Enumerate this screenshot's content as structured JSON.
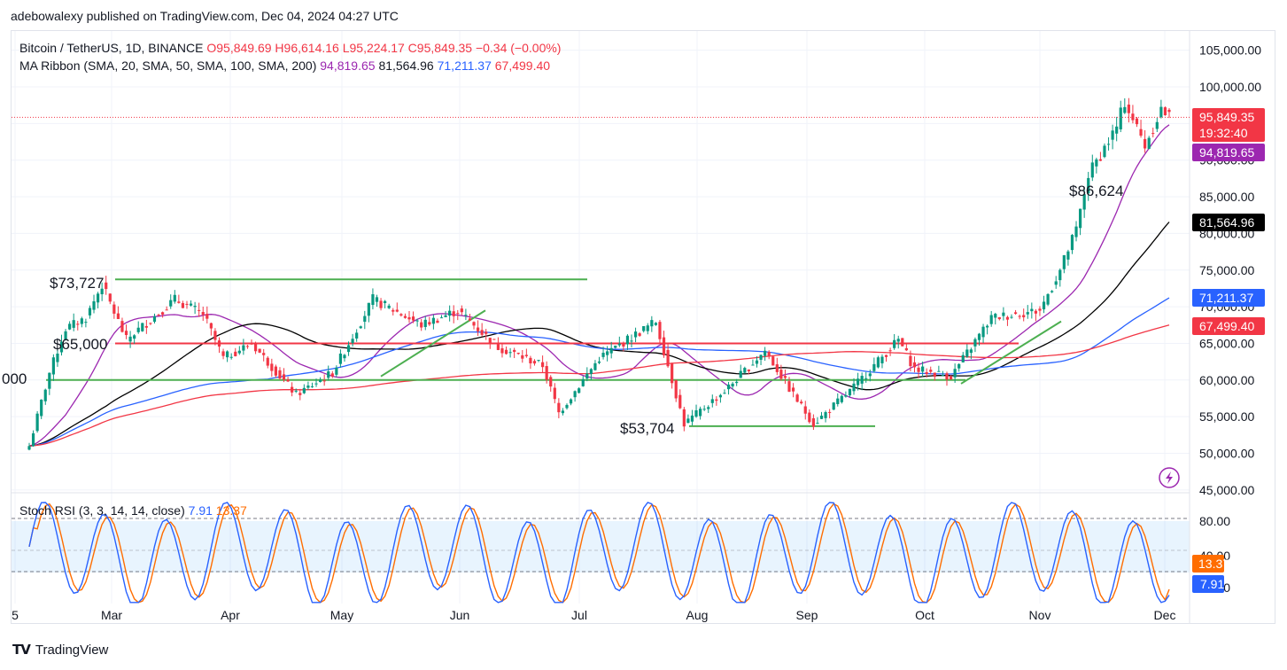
{
  "header": {
    "publisher_line": "adebowalexy published on TradingView.com, Dec 04, 2024 04:27 UTC"
  },
  "legend": {
    "symbol": "Bitcoin / TetherUS, 1D, BINANCE",
    "ohlc": "O95,849.69  H96,614.16  L95,224.17  C95,849.35  −0.34 (−0.00%)",
    "ribbon_label": "MA Ribbon (SMA, 20, SMA, 50, SMA, 100, SMA, 200)",
    "ma_values": [
      {
        "text": "94,819.65",
        "color": "#9c27b0"
      },
      {
        "text": "81,564.96",
        "color": "#131722"
      },
      {
        "text": "71,211.37",
        "color": "#2962ff"
      },
      {
        "text": "67,499.40",
        "color": "#f23645"
      }
    ],
    "stoch_label": "Stoch RSI (3, 3, 14, 14, close)",
    "stoch_k": "7.91",
    "stoch_d": "13.37"
  },
  "price_axis": [
    "105,000.00",
    "100,000.00",
    "95,000.00",
    "90,000.00",
    "85,000.00",
    "80,000.00",
    "75,000.00",
    "70,000.00",
    "65,000.00",
    "60,000.00",
    "55,000.00",
    "50,000.00",
    "45,000.00"
  ],
  "price_badges": {
    "last": "95,849.35",
    "countdown": "19:32:40",
    "sma20": "94,819.65",
    "sma50": "81,564.96",
    "sma100": "71,211.37",
    "sma200": "67,499.40"
  },
  "rsi_axis": [
    "80.00",
    "40.00",
    "20.00"
  ],
  "rsi_badges": {
    "d": "13.37",
    "k": "7.91"
  },
  "time_axis": [
    "5",
    "Mar",
    "Apr",
    "May",
    "Jun",
    "Jul",
    "Aug",
    "Sep",
    "Oct",
    "Nov",
    "Dec"
  ],
  "annotations": [
    "$73,727",
    "$65,000",
    "000",
    "$53,704",
    "$86,624"
  ],
  "colors": {
    "up": "#089981",
    "down": "#f23645",
    "sma20": "#9c27b0",
    "sma50": "#000000",
    "sma100": "#2962ff",
    "sma200": "#f23645",
    "support": "#4caf50",
    "k_line": "#2962ff",
    "d_line": "#ff6d00"
  },
  "footer": {
    "brand": "TradingView"
  },
  "chart_data": {
    "type": "line",
    "title": "Bitcoin / TetherUS, 1D, BINANCE",
    "y_range": [
      45000,
      105000
    ],
    "close_series": {
      "x": [
        "Feb 25",
        "Mar 1",
        "Mar 5",
        "Mar 10",
        "Mar 14",
        "Mar 20",
        "Apr 1",
        "Apr 8",
        "Apr 13",
        "Apr 20",
        "May 1",
        "May 10",
        "May 20",
        "May 27",
        "Jun 1",
        "Jun 10",
        "Jun 20",
        "Jul 1",
        "Jul 5",
        "Jul 15",
        "Jul 29",
        "Aug 5",
        "Aug 15",
        "Aug 25",
        "Sep 1",
        "Sep 6",
        "Sep 15",
        "Sep 27",
        "Oct 1",
        "Oct 10",
        "Oct 20",
        "Nov 1",
        "Nov 6",
        "Nov 10",
        "Nov 13",
        "Nov 20",
        "Nov 22",
        "Nov 27",
        "Dec 1",
        "Dec 4"
      ],
      "values": [
        51000,
        61000,
        67000,
        68500,
        73000,
        65500,
        71000,
        69000,
        63000,
        65000,
        58000,
        61000,
        71000,
        69000,
        67500,
        69500,
        64500,
        62000,
        55500,
        63000,
        68000,
        54000,
        58500,
        64000,
        58000,
        54000,
        58500,
        65500,
        61500,
        60500,
        68500,
        69500,
        75000,
        80500,
        88000,
        94500,
        98000,
        92000,
        97000,
        95849
      ]
    },
    "moving_averages": [
      {
        "name": "SMA 20",
        "last": 94819.65
      },
      {
        "name": "SMA 50",
        "last": 81564.96
      },
      {
        "name": "SMA 100",
        "last": 71211.37
      },
      {
        "name": "SMA 200",
        "last": 67499.4
      }
    ],
    "horizontal_levels": [
      73727,
      65000,
      60000,
      53704
    ],
    "stoch_rsi": {
      "k_last": 7.91,
      "d_last": 13.37,
      "range": [
        0,
        100
      ],
      "band": [
        20,
        80
      ]
    }
  }
}
